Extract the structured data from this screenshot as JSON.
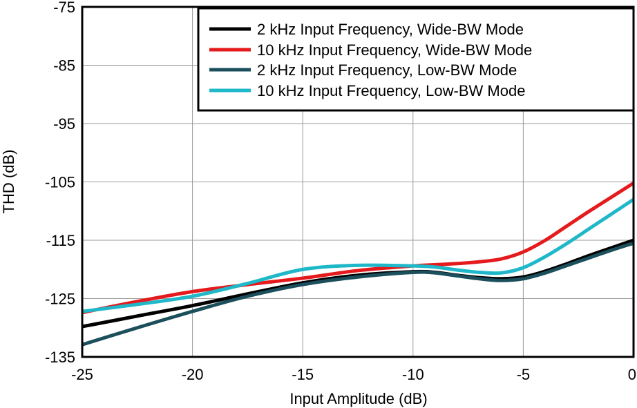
{
  "chart_data": {
    "type": "line",
    "title": "",
    "xlabel": "Input Amplitude (dB)",
    "ylabel": "THD (dB)",
    "xlim": [
      -25,
      0
    ],
    "ylim": [
      -135,
      -75
    ],
    "xticks": [
      -25,
      -20,
      -15,
      -10,
      -5,
      0
    ],
    "yticks": [
      -75,
      -85,
      -95,
      -105,
      -115,
      -125,
      -135
    ],
    "grid": true,
    "legend_position": "top-right",
    "series": [
      {
        "name": "2 kHz Input Frequency, Wide-BW Mode",
        "color": "#000000",
        "x": [
          -25,
          -22.5,
          -20,
          -17.5,
          -15,
          -12.5,
          -10,
          -9,
          -8,
          -7,
          -6,
          -5,
          -4,
          -3,
          -2,
          -1,
          0
        ],
        "y": [
          -129.8,
          -128,
          -126.2,
          -124.2,
          -122.3,
          -121,
          -120.4,
          -120.5,
          -121,
          -121.4,
          -121.6,
          -121.3,
          -120.3,
          -119,
          -117.6,
          -116.3,
          -115
        ]
      },
      {
        "name": "10 kHz Input Frequency, Wide-BW Mode",
        "color": "#e41a1c",
        "x": [
          -25,
          -22.5,
          -20,
          -17.5,
          -15,
          -12.5,
          -10,
          -9,
          -8,
          -7,
          -6,
          -5,
          -4,
          -3,
          -2,
          -1,
          0
        ],
        "y": [
          -127.4,
          -125.5,
          -123.8,
          -122.6,
          -121.5,
          -120.2,
          -119.4,
          -119.2,
          -119,
          -118.7,
          -118.2,
          -117,
          -115,
          -112.5,
          -110,
          -107.6,
          -105.2
        ]
      },
      {
        "name": "2 kHz Input Frequency, Low-BW Mode",
        "color": "#1b4f5c",
        "x": [
          -25,
          -22.5,
          -20,
          -17.5,
          -15,
          -12.5,
          -10,
          -9,
          -8,
          -7,
          -6,
          -5,
          -4,
          -3,
          -2,
          -1,
          0
        ],
        "y": [
          -132.9,
          -130,
          -127.2,
          -124.6,
          -122.6,
          -121.3,
          -120.5,
          -120.6,
          -121.1,
          -121.6,
          -121.9,
          -121.6,
          -120.6,
          -119.3,
          -118,
          -116.7,
          -115.5
        ]
      },
      {
        "name": "10 kHz Input Frequency, Low-BW Mode",
        "color": "#1fb8c9",
        "x": [
          -25,
          -22.5,
          -20,
          -17.5,
          -15,
          -12.5,
          -10,
          -9,
          -8,
          -7,
          -6,
          -5,
          -4,
          -3,
          -2,
          -1,
          0
        ],
        "y": [
          -127.2,
          -126,
          -124.6,
          -122.4,
          -120,
          -119.3,
          -119.4,
          -119.6,
          -120.1,
          -120.5,
          -120.6,
          -119.7,
          -117.8,
          -115.5,
          -113,
          -110.5,
          -108
        ]
      }
    ]
  }
}
